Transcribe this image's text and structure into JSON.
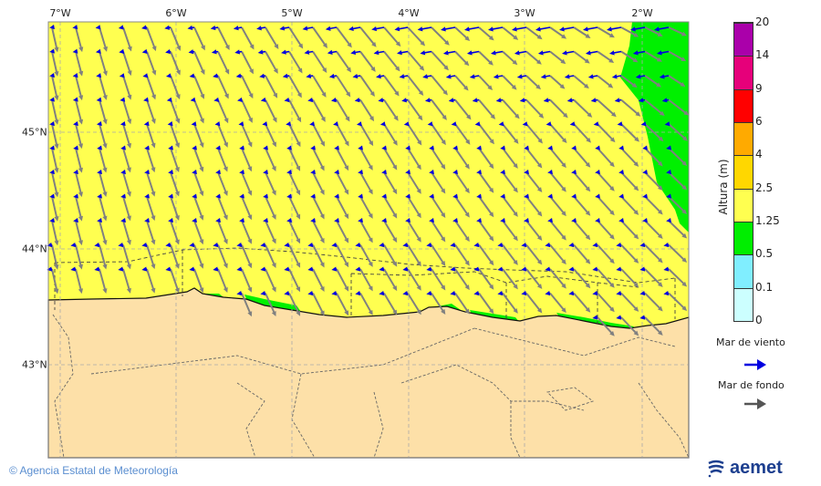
{
  "map": {
    "longitude_labels": [
      "7°W",
      "6°W",
      "5°W",
      "4°W",
      "3°W",
      "2°W"
    ],
    "latitude_labels": [
      "45°N",
      "44°N",
      "43°N"
    ],
    "colors": {
      "sea_low": "#ffff50",
      "sea_mid": "#00f000",
      "land": "#fde0a8",
      "wind_arrow": "#0000e0",
      "swell_arrow": "#808080"
    }
  },
  "colorbar": {
    "title": "Altura (m)",
    "ticks": [
      "0",
      "0.1",
      "0.5",
      "1.25",
      "2.5",
      "4",
      "6",
      "9",
      "14",
      "20"
    ],
    "colors": [
      "#ccffff",
      "#80eeff",
      "#00ee00",
      "#ffff50",
      "#ffd700",
      "#ffaa00",
      "#ff0000",
      "#e6007a",
      "#aa00aa"
    ]
  },
  "legend": {
    "wind_sea": "Mar de viento",
    "swell": "Mar de fondo"
  },
  "footer": {
    "copyright": "© Agencia Estatal de Meteorología",
    "logo": "aemet"
  }
}
